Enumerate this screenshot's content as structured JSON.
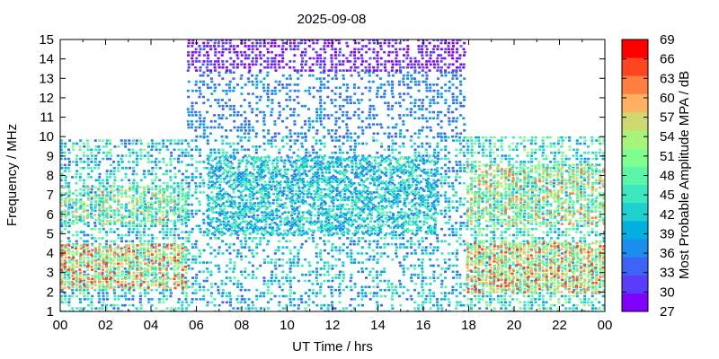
{
  "chart_data": {
    "type": "heatmap",
    "title": "2025-09-08",
    "xlabel": "UT Time / hrs",
    "ylabel": "Frequency / MHz",
    "colorbar_label": "Most Probable Amplitude MPA / dB",
    "xlim": [
      0,
      24
    ],
    "ylim": [
      1,
      15
    ],
    "x_ticks": [
      "00",
      "02",
      "04",
      "06",
      "08",
      "10",
      "12",
      "14",
      "16",
      "18",
      "20",
      "22",
      "00"
    ],
    "y_ticks": [
      "1",
      "2",
      "3",
      "4",
      "5",
      "6",
      "7",
      "8",
      "9",
      "10",
      "11",
      "12",
      "13",
      "14",
      "15"
    ],
    "colorbar_range": [
      27,
      69
    ],
    "colorbar_ticks": [
      "27",
      "30",
      "33",
      "36",
      "39",
      "42",
      "45",
      "48",
      "51",
      "54",
      "57",
      "60",
      "63",
      "66",
      "69"
    ],
    "colorbar_colors": [
      "#7f00ff",
      "#5b3cfb",
      "#3c63f5",
      "#1a8ded",
      "#00b0e0",
      "#1fd0d0",
      "#3ee8bf",
      "#5cf6a8",
      "#80fe90",
      "#a8f47a",
      "#d0d870",
      "#ffb060",
      "#ff7f40",
      "#ff4520",
      "#ff0000"
    ],
    "grid": false,
    "regions": [
      {
        "x_range": [
          0,
          5.6
        ],
        "y_range": [
          1,
          9.9
        ],
        "amplitude_range": [
          33,
          51
        ],
        "density": 0.55
      },
      {
        "x_range": [
          0,
          5.6
        ],
        "y_range": [
          2.2,
          4.4
        ],
        "amplitude_range": [
          48,
          66
        ],
        "density": 0.85
      },
      {
        "x_range": [
          0,
          5.6
        ],
        "y_range": [
          5.5,
          7.5
        ],
        "amplitude_range": [
          42,
          60
        ],
        "density": 0.65
      },
      {
        "x_range": [
          5.6,
          17.9
        ],
        "y_range": [
          1,
          10
        ],
        "amplitude_range": [
          33,
          48
        ],
        "density": 0.45
      },
      {
        "x_range": [
          6.5,
          16.5
        ],
        "y_range": [
          5,
          9
        ],
        "amplitude_range": [
          36,
          48
        ],
        "density": 0.7
      },
      {
        "x_range": [
          5.6,
          17.9
        ],
        "y_range": [
          10,
          13.4
        ],
        "amplitude_range": [
          33,
          39
        ],
        "density": 0.4
      },
      {
        "x_range": [
          5.6,
          17.9
        ],
        "y_range": [
          13.4,
          15
        ],
        "amplitude_range": [
          27,
          33
        ],
        "density": 0.65
      },
      {
        "x_range": [
          17.9,
          24
        ],
        "y_range": [
          1,
          10
        ],
        "amplitude_range": [
          36,
          54
        ],
        "density": 0.6
      },
      {
        "x_range": [
          17.9,
          24
        ],
        "y_range": [
          2,
          4.6
        ],
        "amplitude_range": [
          48,
          66
        ],
        "density": 0.85
      },
      {
        "x_range": [
          17.9,
          24
        ],
        "y_range": [
          5.5,
          8.6
        ],
        "amplitude_range": [
          45,
          63
        ],
        "density": 0.6
      }
    ]
  }
}
